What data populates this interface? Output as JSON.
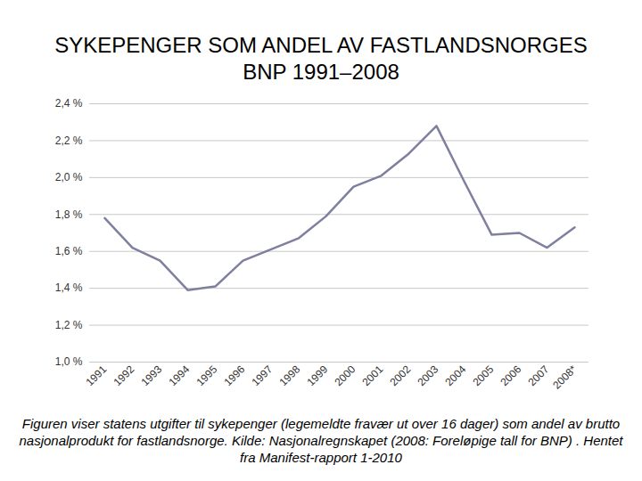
{
  "chart_data": {
    "type": "line",
    "title": "SYKEPENGER SOM ANDEL AV FASTLANDSNORGES BNP 1991–2008",
    "caption": "Figuren viser statens utgifter til sykepenger (legemeldte fravær ut over 16 dager) som andel av brutto nasjonalprodukt for fastlandsnorge. Kilde: Nasjonalregnskapet (2008: Foreløpige tall for BNP) . Hentet fra Manifest-rapport 1-2010",
    "categories": [
      "1991",
      "1992",
      "1993",
      "1994",
      "1995",
      "1996",
      "1997",
      "1998",
      "1999",
      "2000",
      "2001",
      "2002",
      "2003",
      "2004",
      "2005",
      "2006",
      "2007",
      "2008*"
    ],
    "values": [
      1.78,
      1.62,
      1.55,
      1.39,
      1.41,
      1.55,
      1.61,
      1.67,
      1.79,
      1.95,
      2.01,
      2.13,
      2.28,
      1.98,
      1.69,
      1.7,
      1.62,
      1.73
    ],
    "color": "#7f7f9f",
    "ylim": [
      1.0,
      2.4
    ],
    "yticks": [
      {
        "value": 1.0,
        "label": "1,0 %"
      },
      {
        "value": 1.2,
        "label": "1,2 %"
      },
      {
        "value": 1.4,
        "label": "1,4 %"
      },
      {
        "value": 1.6,
        "label": "1,6 %"
      },
      {
        "value": 1.8,
        "label": "1,8 %"
      },
      {
        "value": 2.0,
        "label": "2,0 %"
      },
      {
        "value": 2.2,
        "label": "2,2 %"
      },
      {
        "value": 2.4,
        "label": "2,4 %"
      }
    ],
    "grid": true
  }
}
